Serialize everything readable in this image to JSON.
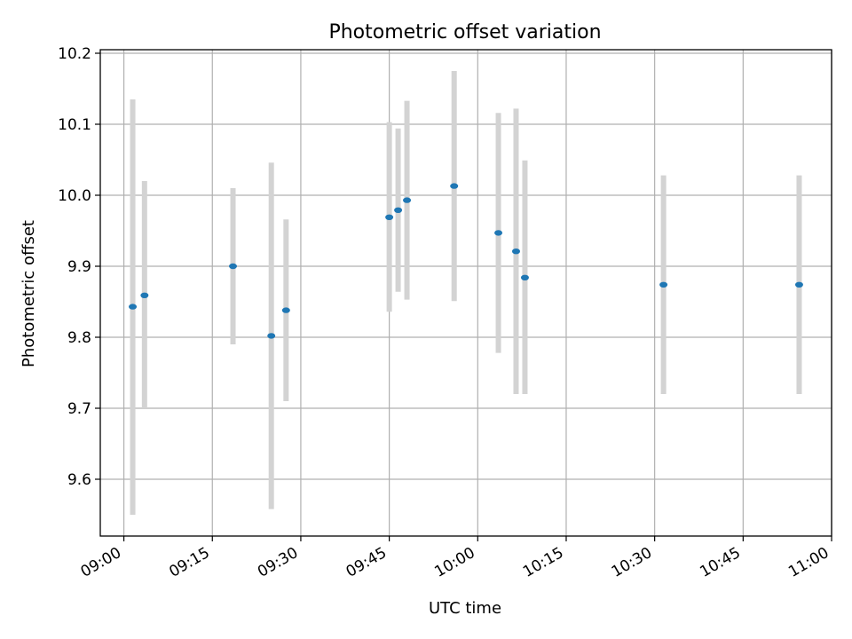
{
  "chart_data": {
    "type": "scatter",
    "title": "Photometric offset variation",
    "xlabel": "UTC time",
    "ylabel": "Photometric offset",
    "x_ticks": [
      "09:00",
      "09:15",
      "09:30",
      "09:45",
      "10:00",
      "10:15",
      "10:30",
      "10:45",
      "11:00"
    ],
    "y_ticks": [
      "9.6",
      "9.7",
      "9.8",
      "9.9",
      "10.0",
      "10.1",
      "10.2"
    ],
    "xlim": [
      "08:56",
      "11:00"
    ],
    "ylim": [
      9.52,
      10.205
    ],
    "grid": true,
    "colors": {
      "point": "#1f77b4",
      "errorbar": "#d3d3d3",
      "grid": "#b0b0b0"
    },
    "points": [
      {
        "time": "09:01:30",
        "value": 9.843,
        "low": 9.55,
        "high": 10.135
      },
      {
        "time": "09:03:30",
        "value": 9.859,
        "low": 9.7,
        "high": 10.02
      },
      {
        "time": "09:18:30",
        "value": 9.9,
        "low": 9.79,
        "high": 10.01
      },
      {
        "time": "09:25:00",
        "value": 9.802,
        "low": 9.558,
        "high": 10.046
      },
      {
        "time": "09:27:30",
        "value": 9.838,
        "low": 9.71,
        "high": 9.966
      },
      {
        "time": "09:45:00",
        "value": 9.969,
        "low": 9.836,
        "high": 10.103
      },
      {
        "time": "09:46:30",
        "value": 9.979,
        "low": 9.864,
        "high": 10.094
      },
      {
        "time": "09:48:00",
        "value": 9.993,
        "low": 9.853,
        "high": 10.133
      },
      {
        "time": "09:56:00",
        "value": 10.013,
        "low": 9.851,
        "high": 10.175
      },
      {
        "time": "10:03:30",
        "value": 9.947,
        "low": 9.778,
        "high": 10.116
      },
      {
        "time": "10:06:30",
        "value": 9.921,
        "low": 9.72,
        "high": 10.122
      },
      {
        "time": "10:08:00",
        "value": 9.884,
        "low": 9.72,
        "high": 10.049
      },
      {
        "time": "10:31:30",
        "value": 9.874,
        "low": 9.72,
        "high": 10.028
      },
      {
        "time": "10:54:30",
        "value": 9.874,
        "low": 9.72,
        "high": 10.028
      }
    ]
  }
}
